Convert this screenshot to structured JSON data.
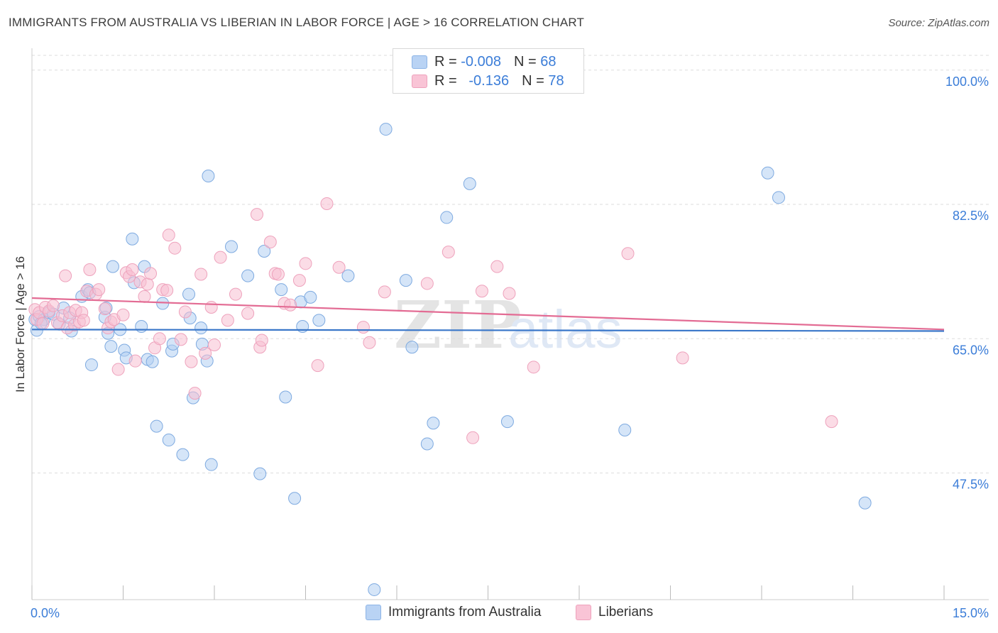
{
  "header": {
    "title": "IMMIGRANTS FROM AUSTRALIA VS LIBERIAN IN LABOR FORCE | AGE > 16 CORRELATION CHART",
    "source": "Source: ZipAtlas.com"
  },
  "legend_top": {
    "rows": [
      {
        "r_label": "R =",
        "r_value": "-0.008",
        "n_label": "N =",
        "n_value": "68",
        "color": "#9ec2ef"
      },
      {
        "r_label": "R =",
        "r_value": "-0.136",
        "n_label": "N =",
        "n_value": "78",
        "color": "#f5aac3"
      }
    ]
  },
  "legend_bottom": {
    "items": [
      {
        "label": "Immigrants from Australia",
        "color": "#9ec2ef"
      },
      {
        "label": "Liberians",
        "color": "#f5aac3"
      }
    ]
  },
  "watermark": {
    "zip": "ZIP",
    "atlas": "atlas"
  },
  "chart_data": {
    "type": "scatter",
    "xlabel": "",
    "ylabel": "In Labor Force | Age > 16",
    "xlim": [
      0,
      15
    ],
    "ylim": [
      31.0,
      102.2
    ],
    "x_tick_labels": [
      "0.0%",
      "15.0%"
    ],
    "y_ticks": [
      47.5,
      65.0,
      82.5,
      100.0
    ],
    "y_tick_labels": [
      "47.5%",
      "65.0%",
      "82.5%",
      "100.0%"
    ],
    "grid": true,
    "legend_position": "top-center",
    "series": [
      {
        "name": "Immigrants from Australia",
        "color": "#3a77c9",
        "fill": "#b3cff3",
        "trend": {
          "x": [
            0,
            15
          ],
          "y": [
            66.2,
            66.0
          ]
        },
        "points": [
          [
            0.05,
            67.5
          ],
          [
            0.12,
            67.9
          ],
          [
            0.2,
            67.5
          ],
          [
            0.28,
            68.4
          ],
          [
            0.45,
            66.9
          ],
          [
            0.52,
            69.0
          ],
          [
            0.62,
            67.7
          ],
          [
            0.65,
            66.0
          ],
          [
            0.82,
            70.5
          ],
          [
            0.92,
            71.4
          ],
          [
            0.95,
            71.0
          ],
          [
            0.98,
            61.6
          ],
          [
            1.2,
            67.8
          ],
          [
            1.22,
            69.0
          ],
          [
            1.25,
            65.7
          ],
          [
            1.3,
            64.0
          ],
          [
            1.33,
            74.4
          ],
          [
            1.45,
            66.2
          ],
          [
            1.52,
            63.5
          ],
          [
            1.55,
            62.5
          ],
          [
            1.65,
            78.0
          ],
          [
            1.68,
            72.3
          ],
          [
            1.8,
            66.6
          ],
          [
            1.85,
            74.4
          ],
          [
            1.9,
            62.3
          ],
          [
            1.98,
            62.0
          ],
          [
            2.05,
            53.6
          ],
          [
            2.15,
            69.6
          ],
          [
            2.25,
            51.8
          ],
          [
            2.3,
            63.4
          ],
          [
            2.32,
            64.3
          ],
          [
            2.48,
            49.9
          ],
          [
            2.58,
            70.8
          ],
          [
            2.6,
            67.7
          ],
          [
            2.65,
            57.3
          ],
          [
            2.78,
            66.4
          ],
          [
            2.8,
            64.3
          ],
          [
            2.88,
            62.1
          ],
          [
            2.9,
            86.2
          ],
          [
            2.95,
            48.6
          ],
          [
            3.28,
            77.0
          ],
          [
            3.55,
            73.2
          ],
          [
            3.75,
            47.4
          ],
          [
            3.82,
            76.4
          ],
          [
            4.1,
            71.4
          ],
          [
            4.17,
            57.4
          ],
          [
            4.32,
            44.2
          ],
          [
            4.42,
            69.8
          ],
          [
            4.45,
            66.6
          ],
          [
            4.58,
            70.4
          ],
          [
            4.72,
            67.4
          ],
          [
            5.2,
            73.2
          ],
          [
            5.63,
            32.3
          ],
          [
            5.82,
            92.3
          ],
          [
            6.15,
            72.6
          ],
          [
            6.25,
            63.9
          ],
          [
            6.5,
            51.3
          ],
          [
            6.6,
            54.0
          ],
          [
            6.82,
            80.8
          ],
          [
            7.2,
            85.2
          ],
          [
            7.82,
            54.2
          ],
          [
            9.75,
            53.1
          ],
          [
            12.1,
            86.6
          ],
          [
            12.28,
            83.4
          ],
          [
            13.7,
            43.6
          ],
          [
            0.08,
            66.1
          ],
          [
            0.35,
            68.2
          ],
          [
            0.15,
            67.0
          ]
        ]
      },
      {
        "name": "Liberians",
        "color": "#e36c94",
        "fill": "#f7bfd2",
        "trend": {
          "x": [
            0,
            15
          ],
          "y": [
            70.3,
            66.2
          ]
        },
        "points": [
          [
            0.05,
            68.8
          ],
          [
            0.08,
            67.5
          ],
          [
            0.12,
            68.4
          ],
          [
            0.18,
            67.0
          ],
          [
            0.22,
            69.1
          ],
          [
            0.28,
            68.6
          ],
          [
            0.35,
            69.3
          ],
          [
            0.42,
            67.1
          ],
          [
            0.5,
            68.0
          ],
          [
            0.55,
            73.2
          ],
          [
            0.58,
            66.4
          ],
          [
            0.62,
            68.4
          ],
          [
            0.7,
            66.8
          ],
          [
            0.72,
            68.7
          ],
          [
            0.78,
            67.2
          ],
          [
            0.82,
            68.4
          ],
          [
            0.85,
            67.4
          ],
          [
            0.9,
            71.2
          ],
          [
            0.95,
            74.0
          ],
          [
            1.05,
            70.8
          ],
          [
            1.1,
            71.4
          ],
          [
            1.2,
            68.9
          ],
          [
            1.25,
            66.4
          ],
          [
            1.3,
            67.2
          ],
          [
            1.35,
            67.5
          ],
          [
            1.42,
            61.0
          ],
          [
            1.5,
            68.1
          ],
          [
            1.55,
            73.6
          ],
          [
            1.6,
            73.1
          ],
          [
            1.65,
            74.0
          ],
          [
            1.7,
            62.1
          ],
          [
            1.78,
            72.4
          ],
          [
            1.85,
            70.5
          ],
          [
            1.9,
            72.1
          ],
          [
            1.95,
            73.5
          ],
          [
            2.02,
            63.8
          ],
          [
            2.1,
            65.0
          ],
          [
            2.15,
            71.4
          ],
          [
            2.22,
            71.3
          ],
          [
            2.25,
            78.5
          ],
          [
            2.35,
            76.8
          ],
          [
            2.45,
            64.9
          ],
          [
            2.52,
            68.5
          ],
          [
            2.62,
            62.0
          ],
          [
            2.68,
            57.9
          ],
          [
            2.78,
            73.4
          ],
          [
            2.85,
            63.1
          ],
          [
            2.95,
            69.1
          ],
          [
            3.0,
            64.2
          ],
          [
            3.1,
            75.6
          ],
          [
            3.22,
            67.4
          ],
          [
            3.35,
            70.8
          ],
          [
            3.55,
            68.3
          ],
          [
            3.7,
            81.2
          ],
          [
            3.75,
            63.9
          ],
          [
            3.78,
            64.8
          ],
          [
            3.92,
            77.6
          ],
          [
            4.0,
            73.5
          ],
          [
            4.05,
            73.4
          ],
          [
            4.15,
            69.6
          ],
          [
            4.25,
            69.4
          ],
          [
            4.4,
            72.6
          ],
          [
            4.5,
            74.8
          ],
          [
            4.7,
            61.5
          ],
          [
            4.85,
            82.6
          ],
          [
            5.05,
            74.3
          ],
          [
            5.45,
            66.5
          ],
          [
            5.55,
            64.5
          ],
          [
            5.8,
            71.1
          ],
          [
            6.5,
            72.2
          ],
          [
            6.85,
            76.3
          ],
          [
            7.25,
            52.1
          ],
          [
            7.4,
            71.2
          ],
          [
            7.65,
            74.4
          ],
          [
            7.85,
            70.9
          ],
          [
            8.25,
            61.3
          ],
          [
            9.8,
            76.1
          ],
          [
            10.7,
            62.5
          ],
          [
            13.15,
            54.2
          ]
        ]
      }
    ]
  }
}
